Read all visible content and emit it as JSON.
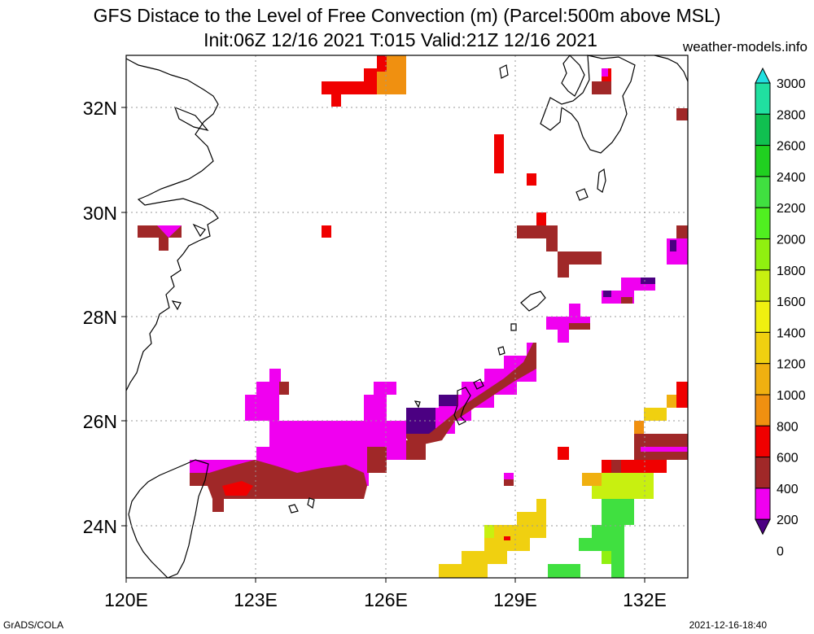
{
  "header": {
    "title": "GFS Distace to the Level of Free Convection (m) (Parcel:500m above MSL)",
    "subtitle": "Init:06Z 12/16 2021 T:015 Valid:21Z 12/16 2021",
    "site": "weather-models.info"
  },
  "footer": {
    "left": "GrADS/COLA",
    "right": "2021-12-16-18:40"
  },
  "map": {
    "x_ticks": [
      "120E",
      "123E",
      "126E",
      "129E",
      "132E"
    ],
    "y_ticks": [
      "32N",
      "30N",
      "28N",
      "26N",
      "24N"
    ],
    "lon_range": [
      120,
      133
    ],
    "lat_range": [
      23,
      33
    ]
  },
  "colorbar": {
    "labels": [
      "3000",
      "2800",
      "2600",
      "2400",
      "2200",
      "2000",
      "1800",
      "1600",
      "1400",
      "1200",
      "1000",
      "800",
      "600",
      "400",
      "200",
      "0"
    ],
    "colors": [
      "#20e0e0",
      "#20e0a0",
      "#10c050",
      "#20d020",
      "#40e040",
      "#50f020",
      "#90f010",
      "#c8f010",
      "#f0f010",
      "#f0d010",
      "#f0b010",
      "#f09010",
      "#f00000",
      "#a02828",
      "#f000f0",
      "#4b0082"
    ]
  }
}
